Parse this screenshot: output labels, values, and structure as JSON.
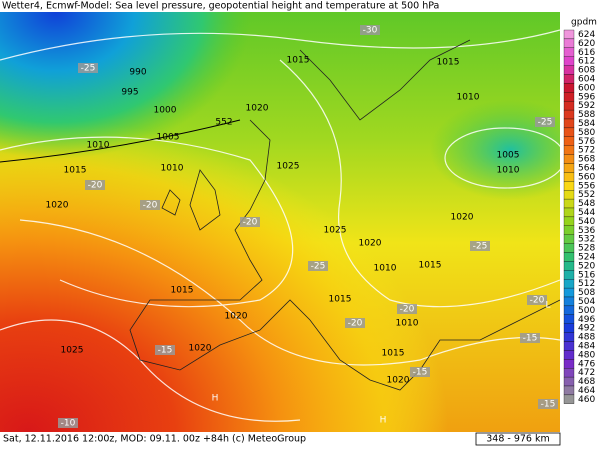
{
  "header": {
    "title": "Wetter4, Ecmwf-Model: Sea level pressure, geopotential height and temperature at 500 hPa"
  },
  "legend": {
    "unit": "gpdm",
    "values": [
      624,
      620,
      616,
      612,
      608,
      604,
      600,
      596,
      592,
      588,
      584,
      580,
      576,
      572,
      568,
      564,
      560,
      556,
      552,
      548,
      544,
      540,
      536,
      532,
      528,
      524,
      520,
      516,
      512,
      508,
      504,
      500,
      496,
      492,
      488,
      484,
      480,
      476,
      472,
      468,
      464,
      460
    ]
  },
  "footer": {
    "text": "Sat, 12.11.2016 12:00z, MOD: 09.11. 00z +84h (c) MeteoGroup",
    "scale": "348 - 976 km"
  },
  "map_labels": [
    "-30",
    "-25",
    "990",
    "995",
    "1000",
    "1015",
    "1015",
    "1010",
    "-25",
    "1020",
    "552",
    "1005",
    "1010",
    "1005",
    "1010",
    "-20",
    "1015",
    "1010",
    "1025",
    "-20",
    "1020",
    "-20",
    "1025",
    "1020",
    "1020",
    "-25",
    "-25",
    "1010",
    "1015",
    "1015",
    "1015",
    "-20",
    "-20",
    "1020",
    "-20",
    "1010",
    "1020",
    "-15",
    "1025",
    "1015",
    "-15",
    "1020",
    "-15",
    "-15",
    "-10",
    "H",
    "H",
    "L"
  ]
}
